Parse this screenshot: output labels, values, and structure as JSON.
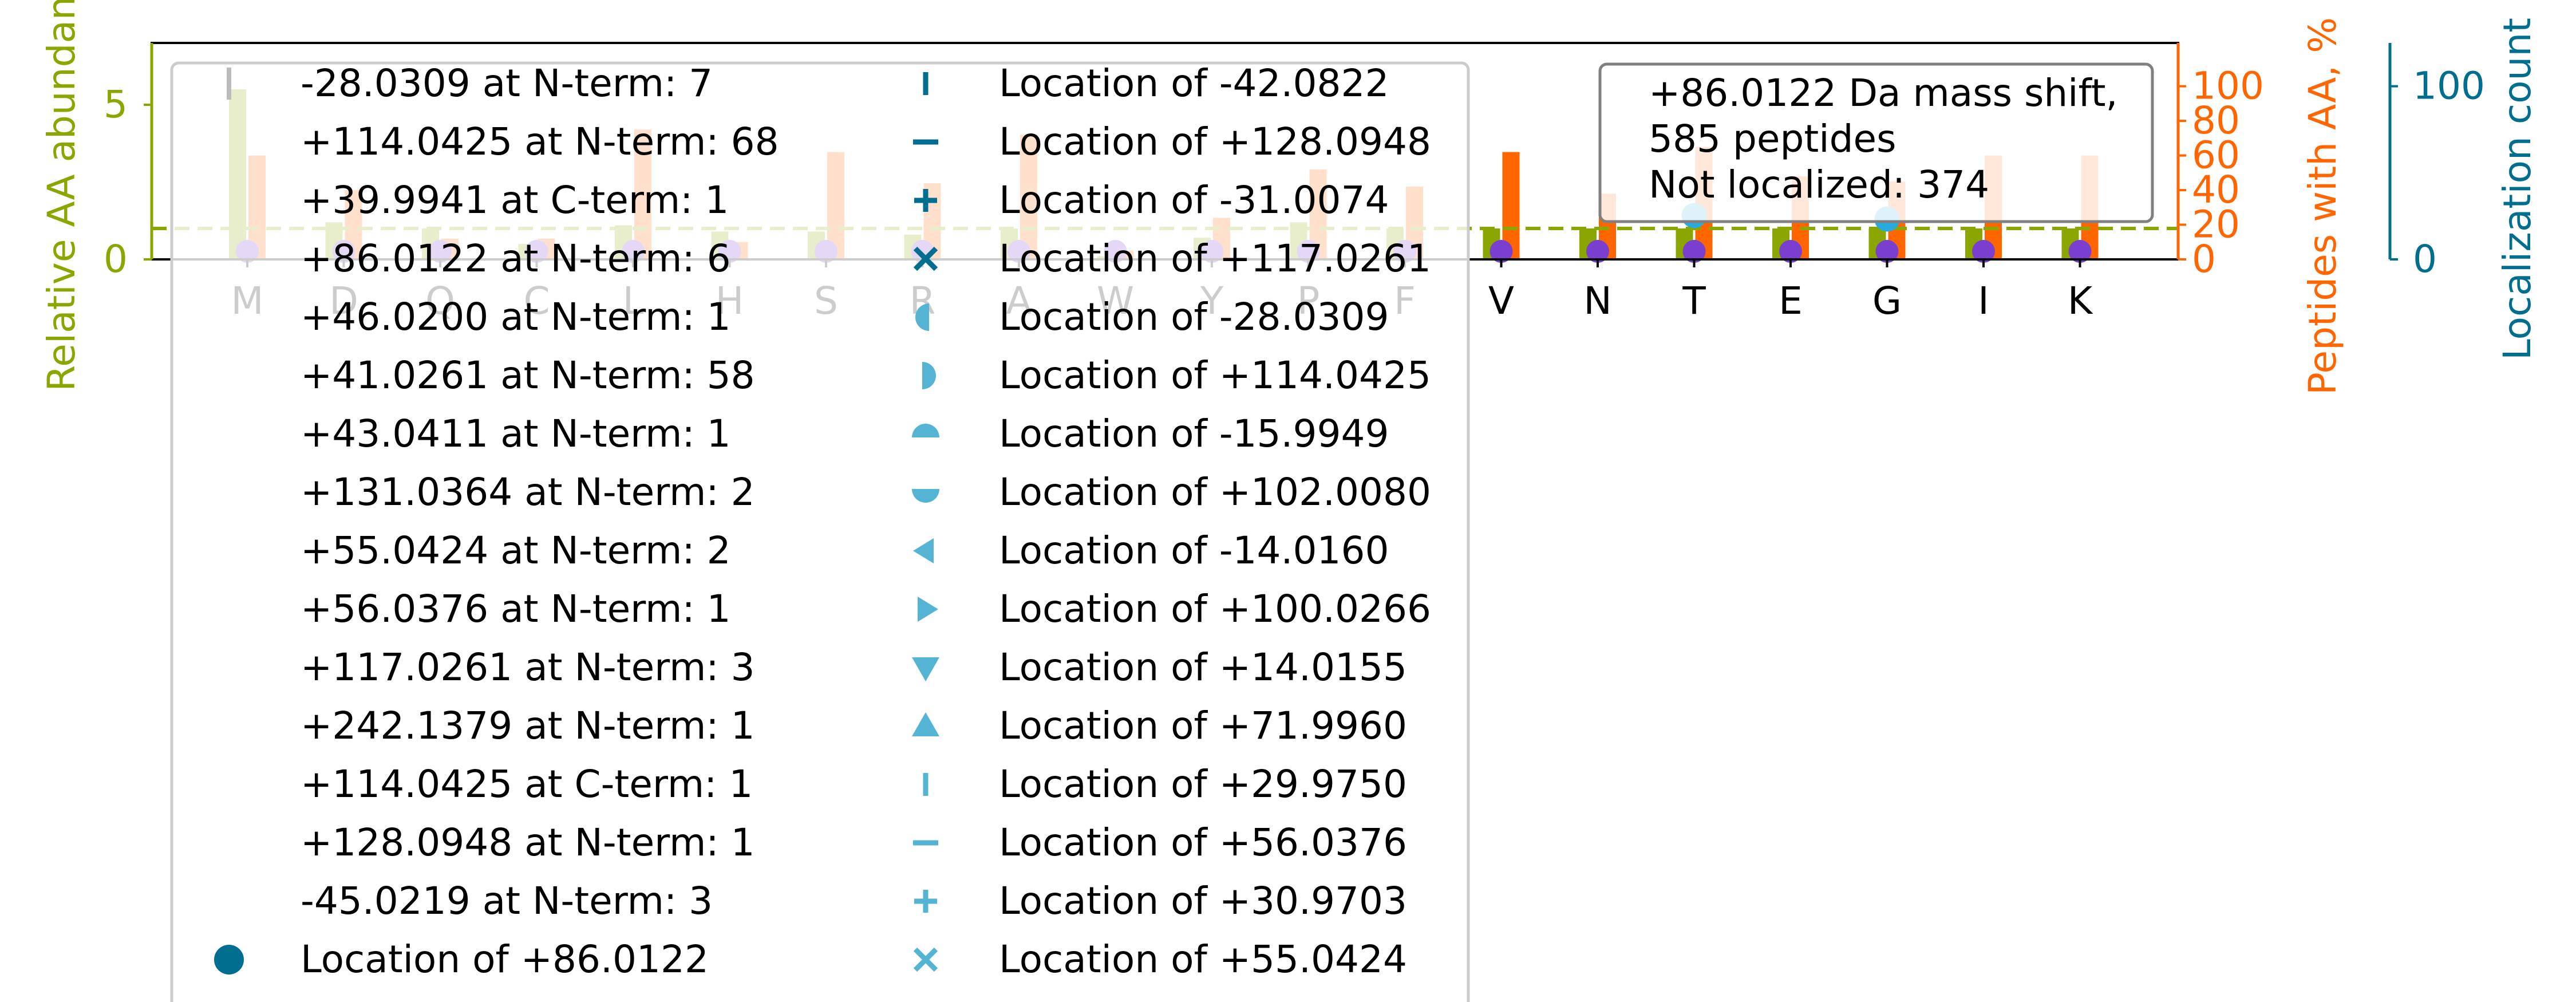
{
  "chart_data": {
    "type": "bar",
    "categories": [
      "M",
      "D",
      "Q",
      "C",
      "L",
      "H",
      "S",
      "R",
      "A",
      "W",
      "Y",
      "P",
      "F",
      "V",
      "N",
      "T",
      "E",
      "G",
      "I",
      "K"
    ],
    "left_axis": {
      "label": "Relative AA abundance",
      "ylim": [
        0,
        7
      ],
      "ticks": [
        "0",
        "5"
      ],
      "tick_values": [
        0,
        5
      ],
      "color": "#8ca600"
    },
    "mid_axis": {
      "label": "Peptides with AA, %",
      "ylim": [
        0,
        125
      ],
      "ticks": [
        "0",
        "20",
        "40",
        "60",
        "80",
        "100"
      ],
      "tick_values": [
        0,
        20,
        40,
        60,
        80,
        100
      ],
      "color": "#ff6600"
    },
    "right_axis": {
      "label": "Localization count",
      "ylim": [
        0,
        125
      ],
      "ticks": [
        "0",
        "100"
      ],
      "tick_values": [
        0,
        100
      ],
      "color": "#006e8e"
    },
    "reference_line": {
      "axis": "left",
      "value": 1.0
    },
    "series": [
      {
        "axis": "left",
        "color": "#8ca600",
        "values": [
          5.5,
          1.2,
          1.0,
          0.5,
          1.1,
          0.9,
          0.9,
          0.8,
          1.0,
          0.1,
          0.7,
          1.2,
          1.0,
          1.0,
          1.0,
          1.0,
          1.0,
          1.0,
          1.0,
          1.0
        ]
      },
      {
        "axis": "mid",
        "color": "#ff6600",
        "values": [
          60,
          40,
          12,
          12,
          75,
          10,
          62,
          44,
          72,
          5,
          24,
          52,
          42,
          62,
          38,
          65,
          48,
          45,
          60,
          60
        ]
      },
      {
        "axis": "right",
        "color": "#28aadc",
        "values": [
          2,
          1,
          1,
          1,
          1,
          1,
          1,
          1,
          1,
          0,
          1,
          1,
          1,
          2,
          0,
          22,
          1,
          20,
          1,
          1
        ]
      }
    ],
    "annotation": [
      "+86.0122 Da mass shift,",
      "585 peptides",
      "Not localized: 374"
    ],
    "legend": {
      "placement": "upper-left",
      "col1": [
        "-28.0309 at N-term: 7",
        "+114.0425 at N-term: 68",
        "+39.9941 at C-term: 1",
        "+86.0122 at N-term: 6",
        "+46.0200 at N-term: 1",
        "+41.0261 at N-term: 58",
        "+43.0411 at N-term: 1",
        "+131.0364 at N-term: 2",
        "+55.0424 at N-term: 2",
        "+56.0376 at N-term: 1",
        "+117.0261 at N-term: 3",
        "+242.1379 at N-term: 1",
        "+114.0425 at C-term: 1",
        "+128.0948 at N-term: 1",
        "-45.0219 at N-term: 3",
        "Location of +86.0122"
      ],
      "col2": [
        "Location of -42.0822",
        "Location of +128.0948",
        "Location of -31.0074",
        "Location of +117.0261",
        "Location of -28.0309",
        "Location of +114.0425",
        "Location of -15.9949",
        "Location of +102.0080",
        "Location of -14.0160",
        "Location of +100.0266",
        "Location of +14.0155",
        "Location of +71.9960",
        "Location of +29.9750",
        "Location of +56.0376",
        "Location of +30.9703",
        "Location of +55.0424"
      ],
      "col1_markers": [
        "vline-gray",
        "none",
        "none",
        "none",
        "none",
        "none",
        "none",
        "none",
        "none",
        "none",
        "none",
        "none",
        "none",
        "none",
        "none",
        "circle"
      ],
      "col2_markers": [
        "vline",
        "hline",
        "plus",
        "x",
        "half-left",
        "half-right",
        "half-top",
        "half-bottom",
        "tri-left",
        "tri-right",
        "tri-down",
        "tri-up",
        "vline",
        "hline",
        "plus",
        "x"
      ],
      "marker_colors": {
        "dark": "#006e8e",
        "light": "#55b4d4",
        "gray": "#bbbbbb"
      }
    }
  }
}
